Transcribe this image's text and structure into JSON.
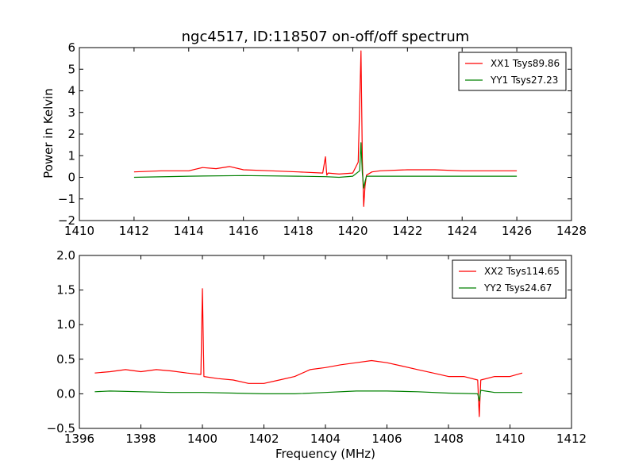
{
  "chart_data": [
    {
      "type": "line",
      "title": "ngc4517, ID:118507 on-off/off spectrum",
      "xlabel": "",
      "ylabel": "Power in Kelvin",
      "xlim": [
        1410,
        1428
      ],
      "ylim": [
        -2,
        6
      ],
      "xticks": [
        "1410",
        "1412",
        "1414",
        "1416",
        "1418",
        "1420",
        "1422",
        "1424",
        "1426",
        "1428"
      ],
      "yticks": [
        "−2",
        "−1",
        "0",
        "1",
        "2",
        "3",
        "4",
        "5",
        "6"
      ],
      "grid": false,
      "legend_position": "top-right",
      "series": [
        {
          "name": "XX1 Tsys89.86",
          "color": "#ff0000",
          "x": [
            1412.0,
            1413.0,
            1414.0,
            1414.5,
            1415.0,
            1415.5,
            1416.0,
            1417.0,
            1418.0,
            1418.9,
            1419.0,
            1419.05,
            1419.1,
            1419.5,
            1420.0,
            1420.2,
            1420.3,
            1420.35,
            1420.4,
            1420.45,
            1420.5,
            1420.7,
            1421.0,
            1422.0,
            1423.0,
            1424.0,
            1425.0,
            1426.0
          ],
          "y": [
            0.25,
            0.3,
            0.3,
            0.45,
            0.4,
            0.5,
            0.35,
            0.3,
            0.25,
            0.2,
            0.95,
            0.1,
            0.2,
            0.15,
            0.2,
            0.7,
            5.85,
            0.8,
            -1.35,
            -0.4,
            0.1,
            0.25,
            0.3,
            0.35,
            0.35,
            0.3,
            0.3,
            0.3
          ]
        },
        {
          "name": "YY1 Tsys27.23",
          "color": "#008000",
          "x": [
            1412.0,
            1414.0,
            1416.0,
            1418.0,
            1419.0,
            1419.5,
            1420.0,
            1420.25,
            1420.3,
            1420.35,
            1420.4,
            1420.45,
            1420.5,
            1421.0,
            1422.0,
            1424.0,
            1426.0
          ],
          "y": [
            0.0,
            0.05,
            0.08,
            0.05,
            0.03,
            0.0,
            0.05,
            0.3,
            1.6,
            0.2,
            -0.5,
            -0.2,
            0.05,
            0.05,
            0.05,
            0.05,
            0.05
          ]
        }
      ]
    },
    {
      "type": "line",
      "title": "",
      "xlabel": "Frequency (MHz)",
      "ylabel": "",
      "xlim": [
        1396,
        1412
      ],
      "ylim": [
        -0.5,
        2.0
      ],
      "xticks": [
        "1396",
        "1398",
        "1400",
        "1402",
        "1404",
        "1406",
        "1408",
        "1410",
        "1412"
      ],
      "yticks": [
        "−0.5",
        "0.0",
        "0.5",
        "1.0",
        "1.5",
        "2.0"
      ],
      "grid": false,
      "legend_position": "top-right",
      "series": [
        {
          "name": "XX2 Tsys114.65",
          "color": "#ff0000",
          "x": [
            1396.5,
            1397.0,
            1397.5,
            1398.0,
            1398.5,
            1399.0,
            1399.5,
            1399.95,
            1400.0,
            1400.05,
            1400.5,
            1401.0,
            1401.5,
            1402.0,
            1402.5,
            1403.0,
            1403.5,
            1404.0,
            1404.5,
            1405.0,
            1405.5,
            1406.0,
            1406.5,
            1407.0,
            1407.5,
            1408.0,
            1408.5,
            1408.95,
            1409.0,
            1409.05,
            1409.5,
            1410.0,
            1410.4
          ],
          "y": [
            0.3,
            0.32,
            0.35,
            0.32,
            0.35,
            0.33,
            0.3,
            0.28,
            1.52,
            0.25,
            0.22,
            0.2,
            0.15,
            0.15,
            0.2,
            0.25,
            0.35,
            0.38,
            0.42,
            0.45,
            0.48,
            0.45,
            0.4,
            0.35,
            0.3,
            0.25,
            0.25,
            0.2,
            -0.33,
            0.2,
            0.25,
            0.25,
            0.3
          ]
        },
        {
          "name": "YY2 Tsys24.67",
          "color": "#008000",
          "x": [
            1396.5,
            1397.0,
            1398.0,
            1399.0,
            1400.0,
            1401.0,
            1402.0,
            1403.0,
            1404.0,
            1405.0,
            1406.0,
            1407.0,
            1408.0,
            1408.95,
            1409.0,
            1409.05,
            1409.5,
            1410.0,
            1410.4
          ],
          "y": [
            0.03,
            0.04,
            0.03,
            0.02,
            0.02,
            0.01,
            0.0,
            0.0,
            0.02,
            0.04,
            0.04,
            0.03,
            0.01,
            0.0,
            -0.1,
            0.05,
            0.02,
            0.02,
            0.02
          ]
        }
      ]
    }
  ]
}
